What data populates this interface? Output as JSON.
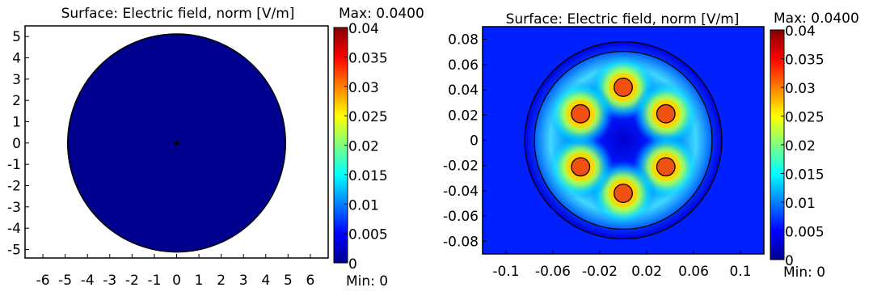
{
  "chart_data": [
    {
      "type": "heatmap",
      "title": "Surface: Electric field, norm [V/m]",
      "xlim": [
        -6.8,
        6.8
      ],
      "ylim": [
        -5.4,
        5.5
      ],
      "xticks": [
        "-6",
        "-5",
        "-4",
        "-3",
        "-2",
        "-1",
        "0",
        "1",
        "2",
        "3",
        "4",
        "5",
        "6"
      ],
      "yticks": [
        "5",
        "4",
        "3",
        "2",
        "1",
        "0",
        "-1",
        "-2",
        "-3",
        "-4",
        "-5"
      ],
      "domain_circle": {
        "center": [
          0,
          0
        ],
        "radius": 5
      },
      "point": [
        0,
        0
      ],
      "field_value": 0,
      "colorbar": {
        "max_label": "Max: 0.0400",
        "min_label": "Min: 0",
        "ticks": [
          "0.04",
          "0.035",
          "0.03",
          "0.025",
          "0.02",
          "0.015",
          "0.01",
          "0.005",
          "0"
        ],
        "range": [
          0,
          0.04
        ]
      }
    },
    {
      "type": "heatmap",
      "title": "Surface: Electric field, norm [V/m]",
      "xlim": [
        -0.12,
        0.12
      ],
      "ylim": [
        -0.09,
        0.09
      ],
      "xticks": [
        "-0.1",
        "-0.06",
        "-0.02",
        "0.02",
        "0.06",
        "0.1"
      ],
      "yticks": [
        "0.08",
        "0.06",
        "0.04",
        "0.02",
        "0",
        "-0.02",
        "-0.04",
        "-0.06",
        "-0.08"
      ],
      "outer_circle_radius": 0.081,
      "inner_circle_radius": 0.073,
      "conductor_radius": 0.0075,
      "conductors": [
        {
          "x": 0,
          "y": 0.042,
          "value": 0.04
        },
        {
          "x": 0.0364,
          "y": 0.021,
          "value": 0.04
        },
        {
          "x": 0.0364,
          "y": -0.021,
          "value": 0.04
        },
        {
          "x": 0,
          "y": -0.042,
          "value": 0.04
        },
        {
          "x": -0.0364,
          "y": -0.021,
          "value": 0.04
        },
        {
          "x": -0.0364,
          "y": 0.021,
          "value": 0.04
        }
      ],
      "colorbar": {
        "max_label": "Max: 0.0400",
        "min_label": "Min: 0",
        "ticks": [
          "0.04",
          "0.035",
          "0.03",
          "0.025",
          "0.02",
          "0.015",
          "0.01",
          "0.005",
          "0"
        ],
        "range": [
          0,
          0.04
        ]
      }
    }
  ]
}
